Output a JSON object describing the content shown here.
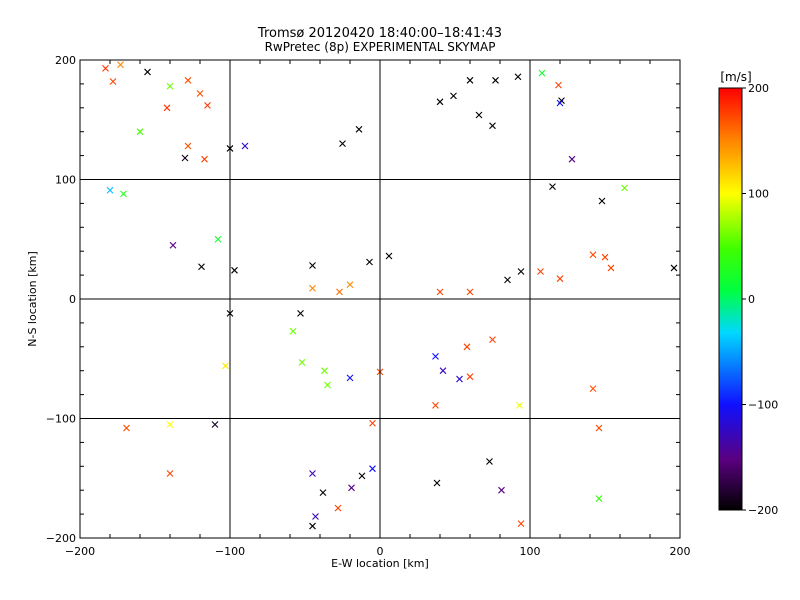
{
  "chart_data": {
    "type": "scatter",
    "title": "Tromsø 20120420 18:40:00–18:41:43",
    "subtitle": "RwPretec (8p) EXPERIMENTAL SKYMAP",
    "xlabel": "E-W location [km]",
    "ylabel": "N-S location [km]",
    "xlim": [
      -200,
      200
    ],
    "ylim": [
      -200,
      200
    ],
    "xticks": [
      -200,
      -100,
      0,
      100,
      200
    ],
    "yticks": [
      -200,
      -100,
      0,
      100,
      200
    ],
    "grid": true,
    "colorbar": {
      "label": "[m/s]",
      "min": -200,
      "max": 200,
      "ticks": [
        200,
        100,
        0,
        -100,
        -200
      ],
      "colormap": "rainbow (black-purple-blue-cyan-green-yellow-red)"
    },
    "marker_types": [
      "dot",
      "cross"
    ],
    "points": [
      {
        "x": -183,
        "y": 193,
        "v": 180,
        "m": "x"
      },
      {
        "x": -178,
        "y": 182,
        "v": 175,
        "m": "x"
      },
      {
        "x": -173,
        "y": 196,
        "v": 150,
        "m": "x"
      },
      {
        "x": -155,
        "y": 190,
        "v": -200,
        "m": "x"
      },
      {
        "x": -140,
        "y": 178,
        "v": 60,
        "m": "x"
      },
      {
        "x": -128,
        "y": 183,
        "v": 170,
        "m": "x"
      },
      {
        "x": -120,
        "y": 172,
        "v": 170,
        "m": "x"
      },
      {
        "x": -142,
        "y": 160,
        "v": 180,
        "m": "x"
      },
      {
        "x": -115,
        "y": 162,
        "v": 180,
        "m": "x"
      },
      {
        "x": -160,
        "y": 140,
        "v": 50,
        "m": "x"
      },
      {
        "x": -128,
        "y": 128,
        "v": 170,
        "m": "x"
      },
      {
        "x": -130,
        "y": 118,
        "v": -190,
        "m": "x"
      },
      {
        "x": -117,
        "y": 117,
        "v": 175,
        "m": "x"
      },
      {
        "x": -100,
        "y": 126,
        "v": -200,
        "m": "x"
      },
      {
        "x": -90,
        "y": 128,
        "v": -120,
        "m": "x"
      },
      {
        "x": -180,
        "y": 91,
        "v": -40,
        "m": "x"
      },
      {
        "x": -171,
        "y": 88,
        "v": 30,
        "m": "x"
      },
      {
        "x": -138,
        "y": 45,
        "v": -150,
        "m": "x"
      },
      {
        "x": -119,
        "y": 27,
        "v": -200,
        "m": "x"
      },
      {
        "x": -97,
        "y": 24,
        "v": -200,
        "m": "x"
      },
      {
        "x": -169,
        "y": -108,
        "v": 170,
        "m": "x"
      },
      {
        "x": -140,
        "y": -105,
        "v": 100,
        "m": "x"
      },
      {
        "x": -140,
        "y": -146,
        "v": 175,
        "m": "x"
      },
      {
        "x": -110,
        "y": -105,
        "v": -190,
        "m": "x"
      },
      {
        "x": -103,
        "y": -56,
        "v": 110,
        "m": "x"
      },
      {
        "x": -45,
        "y": -146,
        "v": -130,
        "m": "x"
      },
      {
        "x": -38,
        "y": -162,
        "v": -200,
        "m": "x"
      },
      {
        "x": -43,
        "y": -182,
        "v": -130,
        "m": "x"
      },
      {
        "x": -45,
        "y": -190,
        "v": -200,
        "m": "x"
      },
      {
        "x": -28,
        "y": -175,
        "v": 175,
        "m": "x"
      },
      {
        "x": -19,
        "y": -158,
        "v": -150,
        "m": "x"
      },
      {
        "x": -12,
        "y": -148,
        "v": -200,
        "m": "x"
      },
      {
        "x": -5,
        "y": -142,
        "v": -100,
        "m": "x"
      },
      {
        "x": -5,
        "y": -104,
        "v": 175,
        "m": "x"
      },
      {
        "x": 38,
        "y": -154,
        "v": -200,
        "m": "x"
      },
      {
        "x": 73,
        "y": -136,
        "v": -200,
        "m": "x"
      },
      {
        "x": 81,
        "y": -160,
        "v": -150,
        "m": "x"
      },
      {
        "x": 94,
        "y": -188,
        "v": 175,
        "m": "x"
      },
      {
        "x": 93,
        "y": -89,
        "v": 95,
        "m": "x"
      },
      {
        "x": 142,
        "y": -75,
        "v": 170,
        "m": "x"
      },
      {
        "x": 146,
        "y": -108,
        "v": 170,
        "m": "x"
      },
      {
        "x": 146,
        "y": -167,
        "v": 40,
        "m": "x"
      },
      {
        "x": 163,
        "y": 93,
        "v": 60,
        "m": "x"
      },
      {
        "x": 142,
        "y": 37,
        "v": 175,
        "m": "x"
      },
      {
        "x": 150,
        "y": 35,
        "v": 175,
        "m": "x"
      },
      {
        "x": 107,
        "y": 23,
        "v": 175,
        "m": "x"
      },
      {
        "x": 120,
        "y": 17,
        "v": 175,
        "m": "x"
      },
      {
        "x": 154,
        "y": 26,
        "v": 175,
        "m": "x"
      },
      {
        "x": 196,
        "y": 26,
        "v": -200,
        "m": "x"
      },
      {
        "x": 115,
        "y": 94,
        "v": -200,
        "m": "x"
      },
      {
        "x": 148,
        "y": 82,
        "v": -200,
        "m": "x"
      },
      {
        "x": 128,
        "y": 117,
        "v": -150,
        "m": "x"
      },
      {
        "x": 121,
        "y": 166,
        "v": -200,
        "m": "x"
      },
      {
        "x": 120,
        "y": 164,
        "v": -100,
        "m": "x"
      },
      {
        "x": 119,
        "y": 179,
        "v": 175,
        "m": "x"
      },
      {
        "x": 108,
        "y": 189,
        "v": 20,
        "m": "x"
      },
      {
        "x": 92,
        "y": 186,
        "v": -200,
        "m": "x"
      },
      {
        "x": 77,
        "y": 183,
        "v": -200,
        "m": "x"
      },
      {
        "x": 60,
        "y": 183,
        "v": -200,
        "m": "x"
      },
      {
        "x": 75,
        "y": 145,
        "v": -200,
        "m": "x"
      },
      {
        "x": 66,
        "y": 154,
        "v": -200,
        "m": "x"
      },
      {
        "x": 49,
        "y": 170,
        "v": -200,
        "m": "x"
      },
      {
        "x": 40,
        "y": 165,
        "v": -200,
        "m": "x"
      },
      {
        "x": -14,
        "y": 142,
        "v": -200,
        "m": "x"
      },
      {
        "x": -25,
        "y": 130,
        "v": -200,
        "m": "x"
      },
      {
        "x": 6,
        "y": 36,
        "v": -200,
        "m": "x"
      },
      {
        "x": -7,
        "y": 31,
        "v": -200,
        "m": "x"
      },
      {
        "x": -20,
        "y": 12,
        "v": 150,
        "m": "x"
      },
      {
        "x": -27,
        "y": 6,
        "v": 160,
        "m": "x"
      },
      {
        "x": -45,
        "y": 28,
        "v": -200,
        "m": "x"
      },
      {
        "x": -45,
        "y": 9,
        "v": 150,
        "m": "x"
      },
      {
        "x": -53,
        "y": -12,
        "v": -200,
        "m": "x"
      },
      {
        "x": -58,
        "y": -27,
        "v": 60,
        "m": "x"
      },
      {
        "x": -52,
        "y": -53,
        "v": 60,
        "m": "x"
      },
      {
        "x": -37,
        "y": -60,
        "v": 60,
        "m": "x"
      },
      {
        "x": -35,
        "y": -72,
        "v": 60,
        "m": "x"
      },
      {
        "x": -20,
        "y": -66,
        "v": -100,
        "m": "x"
      },
      {
        "x": 0,
        "y": -61,
        "v": 175,
        "m": "x"
      },
      {
        "x": 37,
        "y": -48,
        "v": -100,
        "m": "x"
      },
      {
        "x": 42,
        "y": -60,
        "v": -130,
        "m": "x"
      },
      {
        "x": 53,
        "y": -67,
        "v": -120,
        "m": "x"
      },
      {
        "x": 60,
        "y": -65,
        "v": 175,
        "m": "x"
      },
      {
        "x": 37,
        "y": -89,
        "v": 175,
        "m": "x"
      },
      {
        "x": 75,
        "y": -34,
        "v": 175,
        "m": "x"
      },
      {
        "x": 58,
        "y": -40,
        "v": 175,
        "m": "x"
      },
      {
        "x": 94,
        "y": 23,
        "v": -200,
        "m": "x"
      },
      {
        "x": 85,
        "y": 16,
        "v": -200,
        "m": "x"
      },
      {
        "x": 40,
        "y": 6,
        "v": 175,
        "m": "x"
      },
      {
        "x": 60,
        "y": 6,
        "v": 175,
        "m": "x"
      },
      {
        "x": -100,
        "y": -12,
        "v": -200,
        "m": "x"
      },
      {
        "x": -108,
        "y": 50,
        "v": 20,
        "m": "x"
      }
    ]
  }
}
